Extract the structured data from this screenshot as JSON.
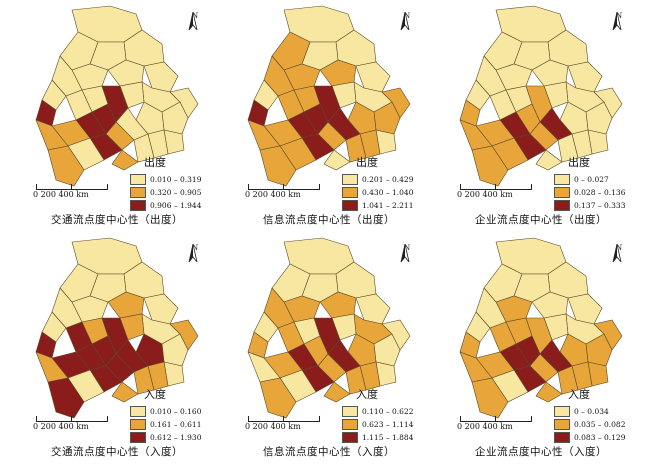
{
  "colors": {
    "low": "#f8e7a0",
    "mid": "#e8a53a",
    "high": "#8a1c1c",
    "border": "#5a4a2a"
  },
  "panels": [
    {
      "caption": "交通流点度中心性（出度）",
      "legend_title": "出度",
      "legend": [
        "0.010 – 0.319",
        "0.320 – 0.905",
        "0.906 – 1.944"
      ],
      "regions": [
        0,
        0,
        0,
        0,
        0,
        0,
        0,
        0,
        0,
        0,
        0,
        0,
        0,
        0,
        0,
        0,
        2,
        0,
        0,
        2,
        0,
        2,
        2,
        0,
        1,
        1,
        2,
        1,
        1,
        0,
        1
      ]
    },
    {
      "caption": "信息流点度中心性（出度）",
      "legend_title": "出度",
      "legend": [
        "0.201 – 0.429",
        "0.430 – 1.040",
        "1.041 – 2.211"
      ],
      "regions": [
        0,
        0,
        0,
        0,
        1,
        1,
        0,
        0,
        1,
        1,
        1,
        1,
        0,
        1,
        1,
        0,
        2,
        2,
        1,
        2,
        1,
        2,
        2,
        1,
        1,
        1,
        2,
        1,
        0,
        1,
        1
      ]
    },
    {
      "caption": "企业流点度中心性（出度）",
      "legend_title": "出度",
      "legend": [
        "0 – 0.027",
        "0.028 – 0.136",
        "0.137 – 0.333"
      ],
      "regions": [
        0,
        0,
        0,
        0,
        0,
        0,
        0,
        0,
        0,
        0,
        0,
        0,
        0,
        0,
        0,
        0,
        1,
        2,
        0,
        1,
        0,
        1,
        2,
        0,
        1,
        1,
        2,
        1,
        0,
        1,
        1
      ]
    },
    {
      "caption": "交通流点度中心性（入度）",
      "legend_title": "入度",
      "legend": [
        "0.010 – 0.160",
        "0.161 – 0.611",
        "0.612 – 1.930"
      ],
      "regions": [
        0,
        0,
        0,
        0,
        0,
        1,
        0,
        1,
        0,
        0,
        1,
        0,
        0,
        2,
        1,
        0,
        2,
        2,
        2,
        2,
        1,
        2,
        2,
        1,
        2,
        2,
        2,
        1,
        1,
        0,
        2
      ]
    },
    {
      "caption": "信息流点度中心性（入度）",
      "legend_title": "入度",
      "legend": [
        "0.110 – 0.622",
        "0.623 – 1.114",
        "1.115 – 1.884"
      ],
      "regions": [
        0,
        0,
        0,
        0,
        0,
        1,
        1,
        0,
        1,
        1,
        0,
        0,
        0,
        1,
        0,
        0,
        2,
        2,
        1,
        1,
        1,
        1,
        2,
        1,
        1,
        1,
        2,
        0,
        1,
        0,
        1
      ]
    },
    {
      "caption": "企业流点度中心性（入度）",
      "legend_title": "入度",
      "legend": [
        "0 – 0.034",
        "0.035 – 0.082",
        "0.083 – 0.129"
      ],
      "regions": [
        0,
        0,
        0,
        0,
        0,
        0,
        0,
        0,
        1,
        0,
        1,
        1,
        0,
        1,
        1,
        1,
        1,
        2,
        1,
        1,
        1,
        2,
        2,
        1,
        1,
        1,
        2,
        1,
        1,
        0,
        1
      ]
    }
  ],
  "north_label": "N",
  "scale_label": "0   200   400 km"
}
